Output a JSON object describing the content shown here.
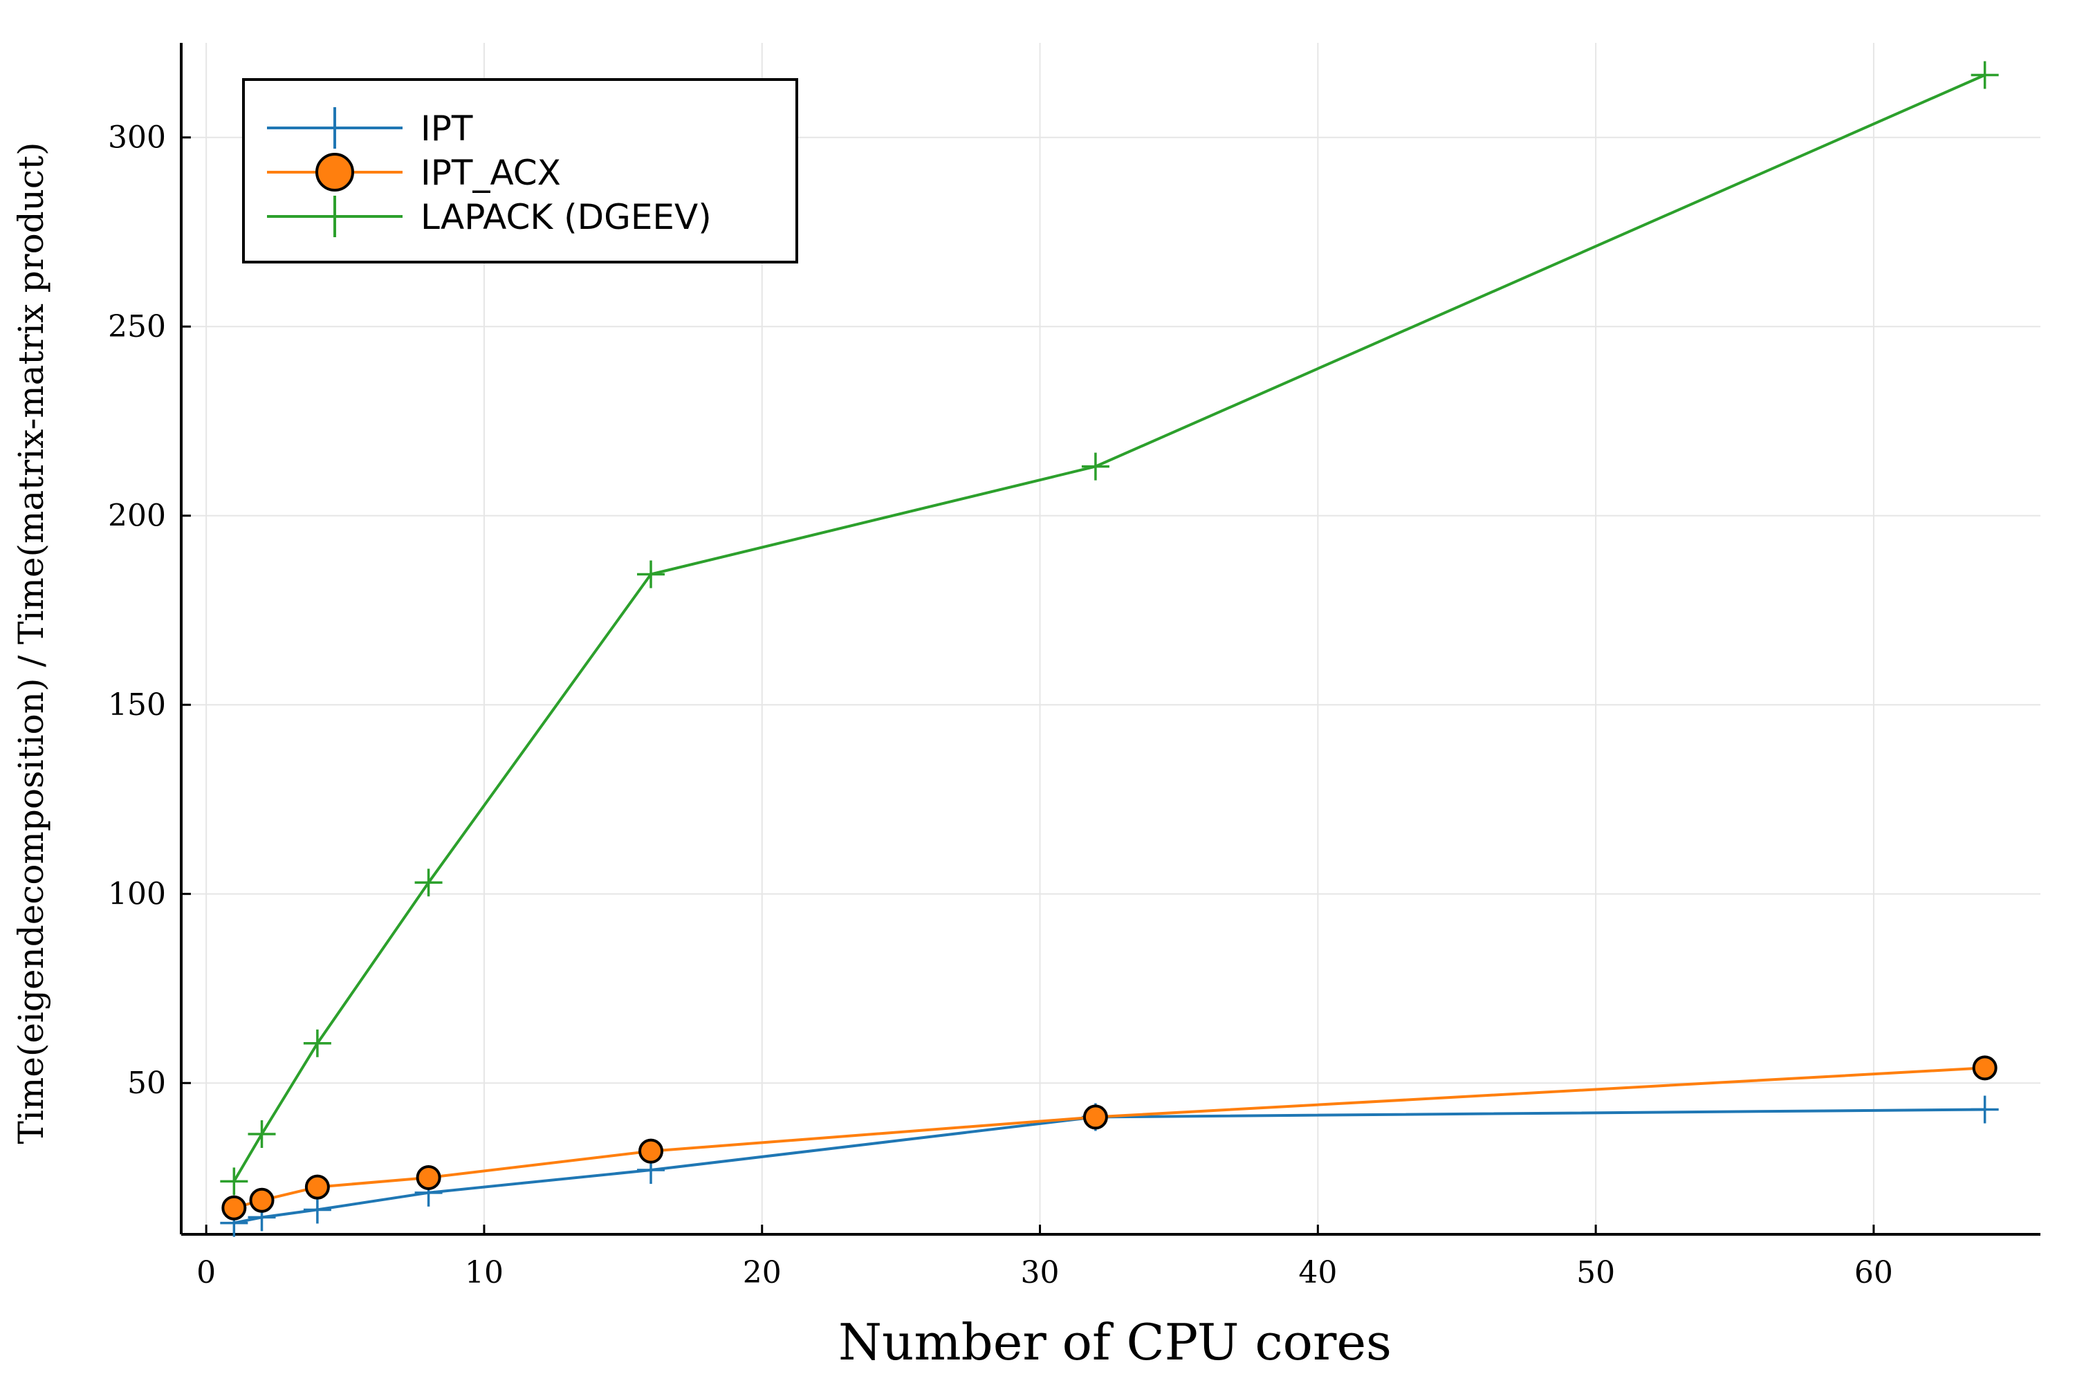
{
  "chart_data": {
    "type": "line",
    "title": "",
    "xlabel": "Number of CPU cores",
    "ylabel": "Time(eigendecomposition) / Time(matrix-matrix product)",
    "xlim": [
      -0.9,
      66
    ],
    "ylim": [
      10,
      325
    ],
    "xticks": [
      0,
      10,
      20,
      30,
      40,
      50,
      60
    ],
    "yticks": [
      50,
      100,
      150,
      200,
      250,
      300
    ],
    "grid": true,
    "legend_position": "top-left",
    "series": [
      {
        "name": "IPT",
        "color": "#1f77b4",
        "marker": "plus",
        "x": [
          1,
          2,
          4,
          8,
          16,
          32,
          64
        ],
        "y": [
          13,
          14.5,
          16.5,
          21,
          27,
          41,
          43
        ]
      },
      {
        "name": "IPT_ACX",
        "color": "#ff7f0e",
        "marker": "circle",
        "x": [
          1,
          2,
          4,
          8,
          16,
          32,
          64
        ],
        "y": [
          17,
          19,
          22.5,
          25,
          32,
          41,
          54
        ]
      },
      {
        "name": "LAPACK (DGEEV)",
        "color": "#2ca02c",
        "marker": "plus",
        "x": [
          1,
          2,
          4,
          8,
          16,
          32,
          64
        ],
        "y": [
          24,
          36.5,
          60.5,
          103,
          184.5,
          213,
          316.5
        ]
      }
    ]
  }
}
